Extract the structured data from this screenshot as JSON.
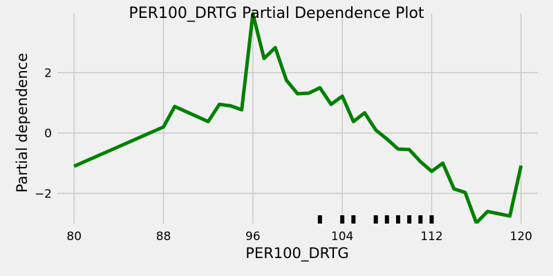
{
  "chart_data": {
    "type": "line",
    "title": "PER100_DRTG Partial Dependence Plot",
    "xlabel": "PER100_DRTG",
    "ylabel": "Partial dependence",
    "xlim": [
      78.5,
      121.5
    ],
    "ylim": [
      -3.0,
      3.95
    ],
    "x_ticks": [
      80,
      88,
      96,
      104,
      112,
      120
    ],
    "x_tick_labels": [
      "80",
      "88",
      "96",
      "104",
      "112",
      "120"
    ],
    "y_ticks": [
      -2,
      0,
      2
    ],
    "y_tick_labels": [
      "−2",
      "0",
      "2"
    ],
    "grid": true,
    "legend": "none",
    "series": [
      {
        "color": "#008000",
        "x": [
          80,
          88,
          89,
          92,
          93,
          94,
          95,
          96,
          97,
          98,
          99,
          100,
          101,
          102,
          103,
          104,
          105,
          106,
          107,
          108,
          109,
          110,
          111,
          112,
          113,
          114,
          115,
          116,
          117,
          119,
          120
        ],
        "y": [
          -1.1,
          0.2,
          0.88,
          0.38,
          0.95,
          0.9,
          0.77,
          3.95,
          2.47,
          2.83,
          1.75,
          1.3,
          1.32,
          1.5,
          0.95,
          1.22,
          0.38,
          0.67,
          0.1,
          -0.2,
          -0.53,
          -0.55,
          -0.95,
          -1.27,
          -1.0,
          -1.85,
          -1.97,
          -2.98,
          -2.6,
          -2.75,
          -1.08
        ]
      }
    ],
    "rug": {
      "color": "#000000",
      "x": [
        102,
        104,
        105,
        107,
        108,
        109,
        110,
        111,
        112
      ]
    }
  }
}
